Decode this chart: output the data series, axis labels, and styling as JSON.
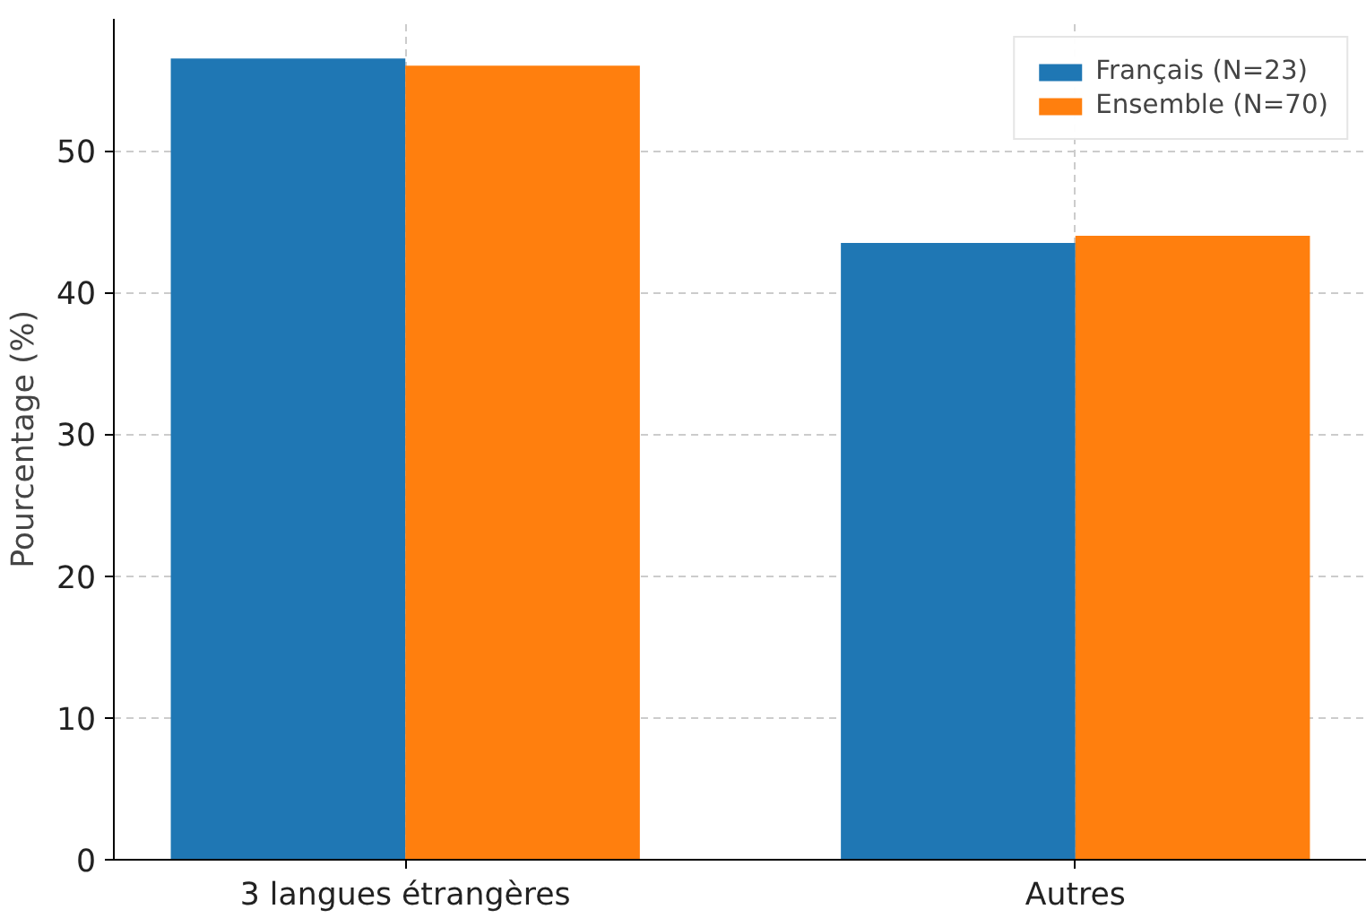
{
  "chart_data": {
    "type": "bar",
    "ylabel": "Pourcentage (%)",
    "categories": [
      "3 langues étrangères",
      "Autres"
    ],
    "series": [
      {
        "name": "Français (N=23)",
        "color": "#1f77b4",
        "values": [
          56.5,
          43.5
        ]
      },
      {
        "name": "Ensemble (N=70)",
        "color": "#ff7f0e",
        "values": [
          56,
          44
        ]
      }
    ],
    "ylim": [
      0,
      59.3
    ],
    "yticks": [
      0,
      10,
      20,
      30,
      40,
      50
    ],
    "grid": true,
    "legend": "top right"
  }
}
